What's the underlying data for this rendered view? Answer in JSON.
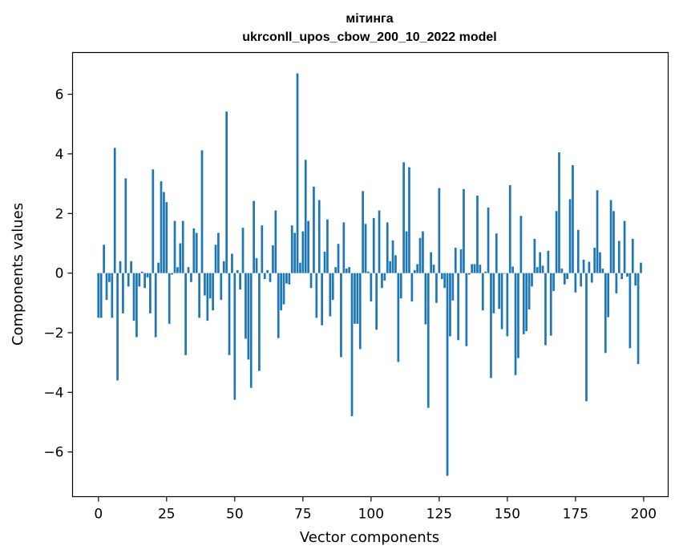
{
  "chart_data": {
    "type": "bar",
    "title": "мітинга",
    "subtitle": "ukrconll_upos_cbow_200_10_2022 model",
    "xlabel": "Vector components",
    "ylabel": "Components values",
    "xlim": [
      -9.5,
      209
    ],
    "ylim": [
      -7.5,
      7.4
    ],
    "xticks": [
      0,
      25,
      50,
      75,
      100,
      125,
      150,
      175,
      200
    ],
    "xtick_labels": [
      "0",
      "25",
      "50",
      "75",
      "100",
      "125",
      "150",
      "175",
      "200"
    ],
    "yticks": [
      -6,
      -4,
      -2,
      0,
      2,
      4,
      6
    ],
    "ytick_labels": [
      "−6",
      "−4",
      "−2",
      "0",
      "2",
      "4",
      "6"
    ],
    "bar_color": "#1f77b4",
    "grid": false,
    "x": [
      0,
      1,
      2,
      3,
      4,
      5,
      6,
      7,
      8,
      9,
      10,
      11,
      12,
      13,
      14,
      15,
      16,
      17,
      18,
      19,
      20,
      21,
      22,
      23,
      24,
      25,
      26,
      27,
      28,
      29,
      30,
      31,
      32,
      33,
      34,
      35,
      36,
      37,
      38,
      39,
      40,
      41,
      42,
      43,
      44,
      45,
      46,
      47,
      48,
      49,
      50,
      51,
      52,
      53,
      54,
      55,
      56,
      57,
      58,
      59,
      60,
      61,
      62,
      63,
      64,
      65,
      66,
      67,
      68,
      69,
      70,
      71,
      72,
      73,
      74,
      75,
      76,
      77,
      78,
      79,
      80,
      81,
      82,
      83,
      84,
      85,
      86,
      87,
      88,
      89,
      90,
      91,
      92,
      93,
      94,
      95,
      96,
      97,
      98,
      99,
      100,
      101,
      102,
      103,
      104,
      105,
      106,
      107,
      108,
      109,
      110,
      111,
      112,
      113,
      114,
      115,
      116,
      117,
      118,
      119,
      120,
      121,
      122,
      123,
      124,
      125,
      126,
      127,
      128,
      129,
      130,
      131,
      132,
      133,
      134,
      135,
      136,
      137,
      138,
      139,
      140,
      141,
      142,
      143,
      144,
      145,
      146,
      147,
      148,
      149,
      150,
      151,
      152,
      153,
      154,
      155,
      156,
      157,
      158,
      159,
      160,
      161,
      162,
      163,
      164,
      165,
      166,
      167,
      168,
      169,
      170,
      171,
      172,
      173,
      174,
      175,
      176,
      177,
      178,
      179,
      180,
      181,
      182,
      183,
      184,
      185,
      186,
      187,
      188,
      189,
      190,
      191,
      192,
      193,
      194,
      195,
      196,
      197,
      198,
      199
    ],
    "values": [
      -1.5,
      -1.5,
      0.95,
      -0.9,
      -0.3,
      -1.5,
      4.2,
      -3.6,
      0.4,
      -1.35,
      3.18,
      -0.45,
      0.4,
      -1.6,
      -2.15,
      -0.45,
      0.05,
      -0.5,
      -0.15,
      -1.35,
      3.48,
      -2.15,
      0.35,
      3.08,
      2.72,
      2.38,
      -1.7,
      -0.05,
      1.75,
      0.2,
      1.0,
      1.75,
      -2.75,
      0.2,
      -0.3,
      1.5,
      1.35,
      -1.5,
      4.12,
      -0.75,
      -1.6,
      -0.85,
      -1.25,
      0.95,
      1.35,
      -0.9,
      0.4,
      5.42,
      -2.75,
      0.65,
      -4.25,
      0.1,
      -0.55,
      1.52,
      -2.2,
      -2.9,
      -3.85,
      2.42,
      0.5,
      -3.28,
      1.6,
      -0.2,
      0.1,
      -0.3,
      0.93,
      2.1,
      -2.18,
      -1.25,
      -1.05,
      -0.35,
      -0.38,
      1.6,
      1.35,
      6.7,
      0.35,
      1.4,
      3.8,
      1.75,
      -0.5,
      2.9,
      -1.5,
      2.45,
      -1.75,
      0.72,
      1.8,
      -1.45,
      -0.9,
      0.2,
      0.98,
      -2.82,
      1.7,
      0.15,
      0.2,
      -4.8,
      -1.7,
      -1.7,
      -2.55,
      2.75,
      1.65,
      0.05,
      -0.95,
      1.85,
      -1.9,
      2.1,
      -0.5,
      -0.25,
      1.7,
      0.4,
      1.1,
      0.6,
      -2.98,
      -0.85,
      3.72,
      1.4,
      3.55,
      -0.95,
      0.1,
      0.3,
      1.18,
      1.4,
      -1.72,
      -4.52,
      0.7,
      0.28,
      -1.0,
      2.85,
      -0.2,
      -0.5,
      -6.8,
      -2.12,
      -0.92,
      0.85,
      -2.25,
      0.8,
      2.82,
      -2.45,
      -0.05,
      0.3,
      0.3,
      2.6,
      0.28,
      -1.25,
      0.05,
      2.2,
      -3.52,
      -1.35,
      1.33,
      -1.2,
      -1.88,
      -0.02,
      -2.12,
      2.95,
      0.22,
      -3.42,
      -2.85,
      1.92,
      -2.05,
      -1.95,
      -1.22,
      -0.45,
      1.15,
      0.2,
      0.7,
      0.25,
      -2.42,
      0.75,
      -2.1,
      -0.6,
      2.08,
      4.05,
      0.15,
      -0.38,
      -0.2,
      2.48,
      3.62,
      -0.65,
      1.45,
      -0.45,
      0.45,
      -4.3,
      0.38,
      -0.32,
      0.85,
      2.78,
      0.7,
      0.15,
      -2.68,
      -1.48,
      2.45,
      2.08,
      -0.68,
      1.08,
      -0.2,
      1.75,
      -0.12,
      -2.52,
      1.15,
      -0.42,
      -3.05,
      0.35
    ]
  }
}
